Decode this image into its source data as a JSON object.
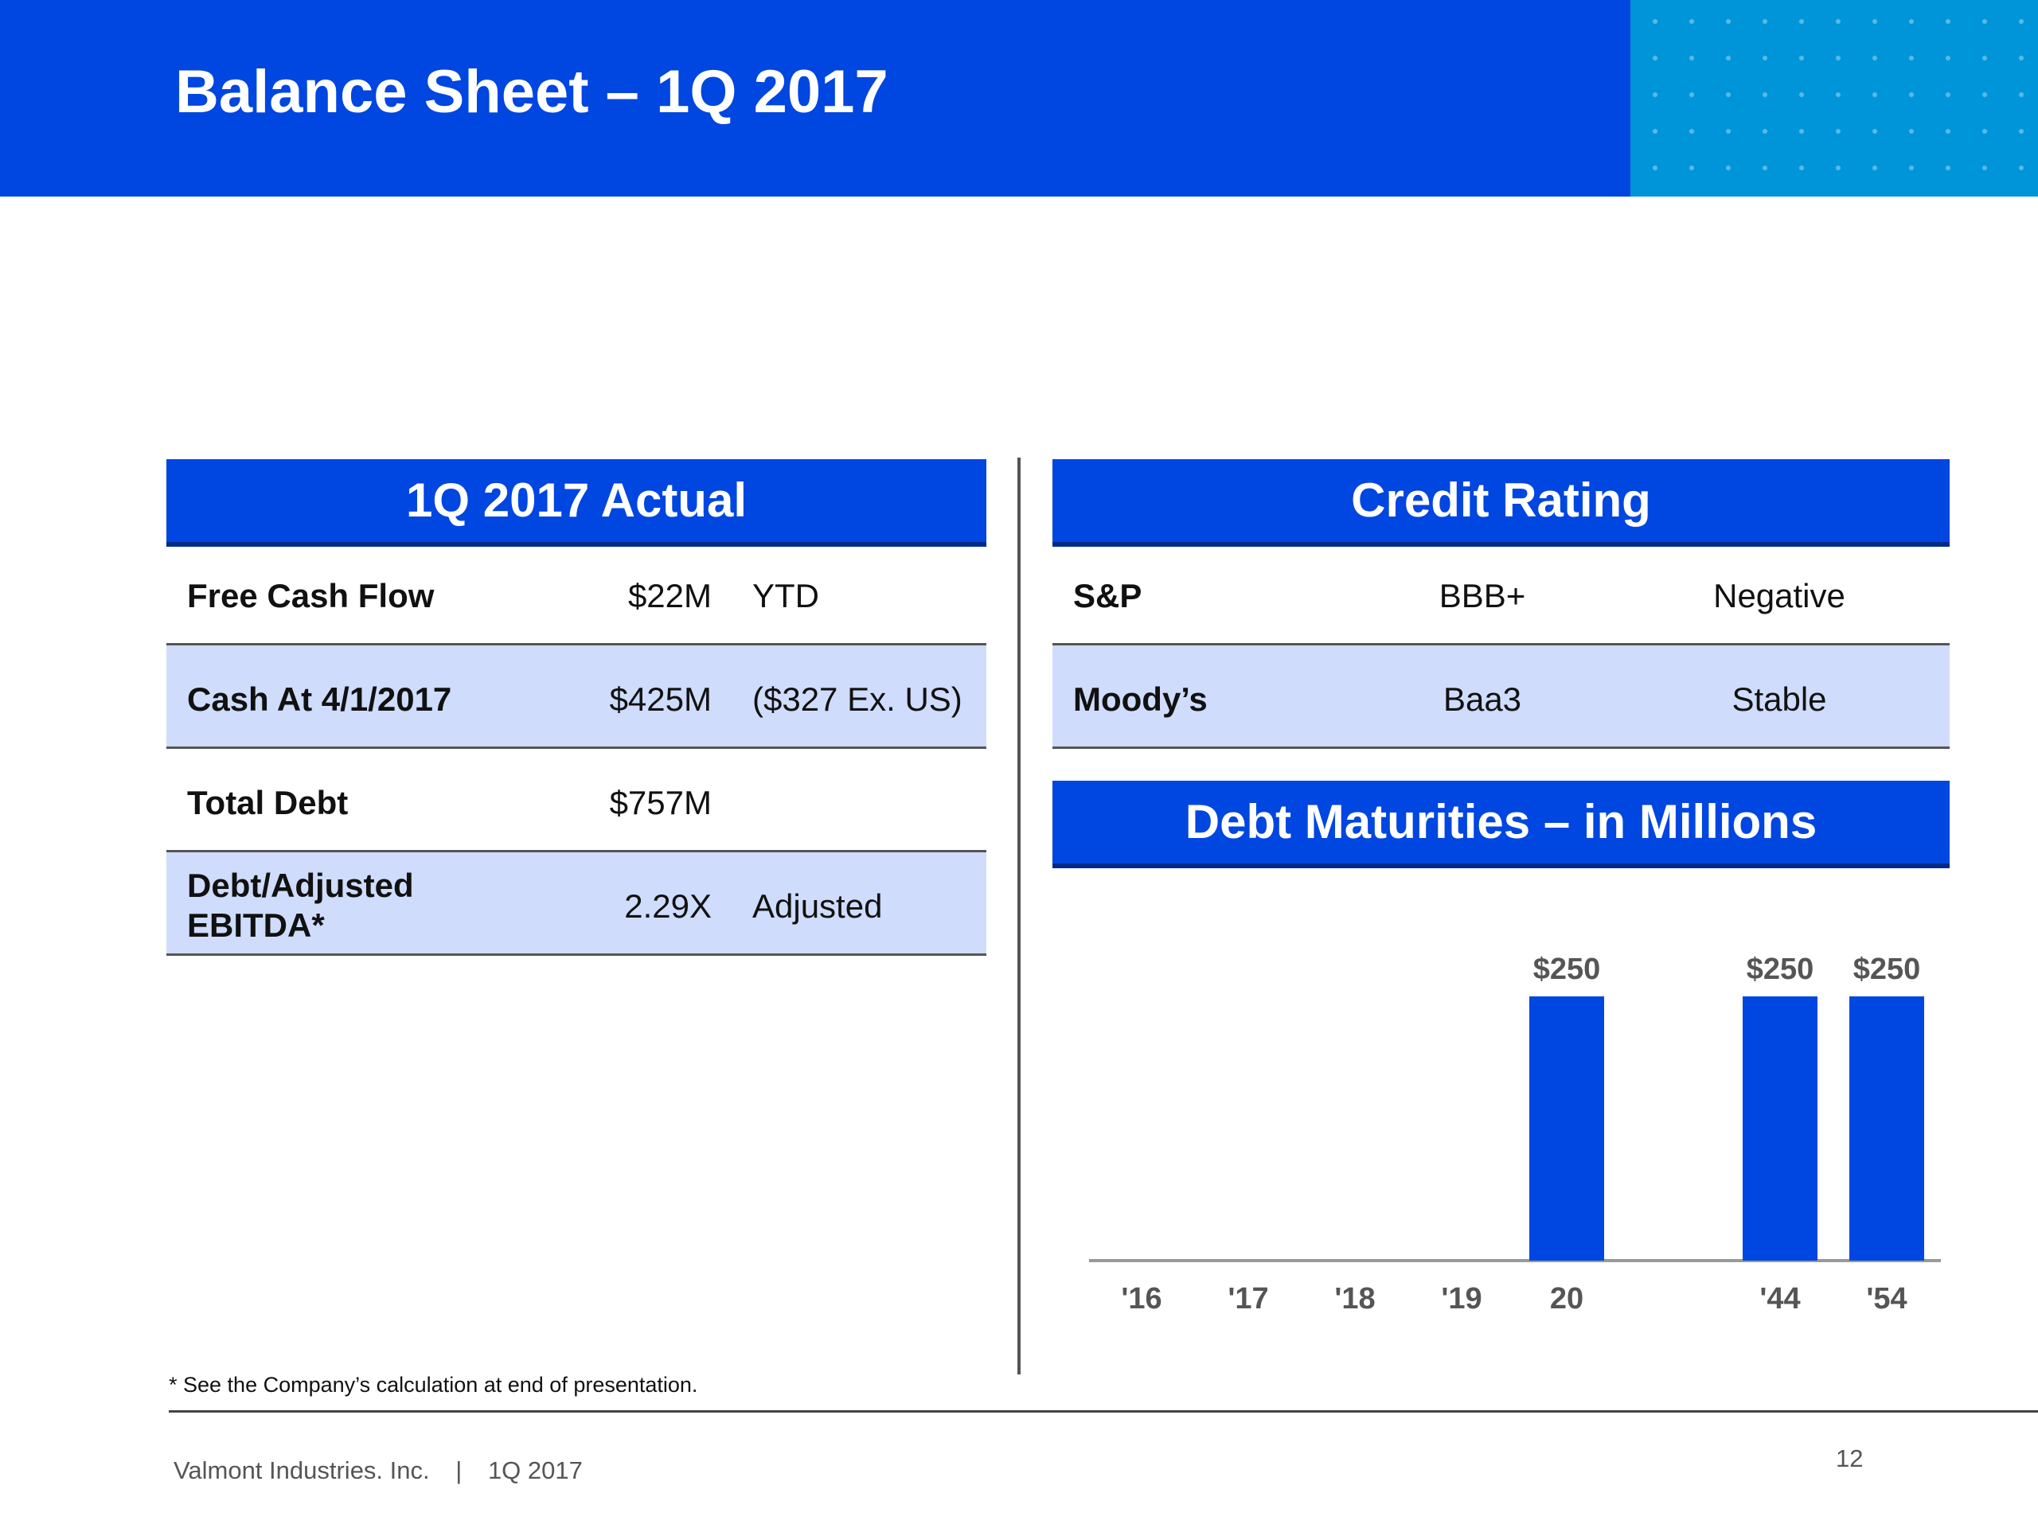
{
  "header": {
    "title": "Balance Sheet – 1Q 2017"
  },
  "actual": {
    "title": "1Q 2017 Actual",
    "rows": [
      {
        "label": "Free Cash Flow",
        "value": "$22M",
        "note": "YTD"
      },
      {
        "label": "Cash At 4/1/2017",
        "value": "$425M",
        "note": "($327 Ex. US)"
      },
      {
        "label": "Total Debt",
        "value": "$757M",
        "note": ""
      },
      {
        "label_line1": "Debt/Adjusted",
        "label_line2": "EBITDA*",
        "value": "2.29X",
        "note": "Adjusted"
      }
    ]
  },
  "credit": {
    "title": "Credit Rating",
    "rows": [
      {
        "agency": "S&P",
        "rating": "BBB+",
        "outlook": "Negative"
      },
      {
        "agency": "Moody’s",
        "rating": "Baa3",
        "outlook": "Stable"
      }
    ]
  },
  "colors": {
    "brand_blue": "#0046e0",
    "accent_cyan": "#0095d8",
    "row_shade": "#cfdcfb"
  },
  "chart_data": {
    "type": "bar",
    "title": "Debt Maturities – in Millions",
    "categories": [
      "'16",
      "'17",
      "'18",
      "'19",
      "20",
      "'44",
      "'54"
    ],
    "values": [
      0,
      0,
      0,
      0,
      250,
      250,
      250
    ],
    "data_labels": [
      "",
      "",
      "",
      "",
      "$250",
      "$250",
      "$250"
    ],
    "xlabel": "",
    "ylabel": "",
    "ylim": [
      0,
      250
    ],
    "grid": false,
    "bar_color": "#0046e0"
  },
  "footnote": "* See the Company’s calculation at end of presentation.",
  "footer": {
    "company": "Valmont Industries. Inc.",
    "separator": "|",
    "period": "1Q 2017",
    "page": "12"
  }
}
